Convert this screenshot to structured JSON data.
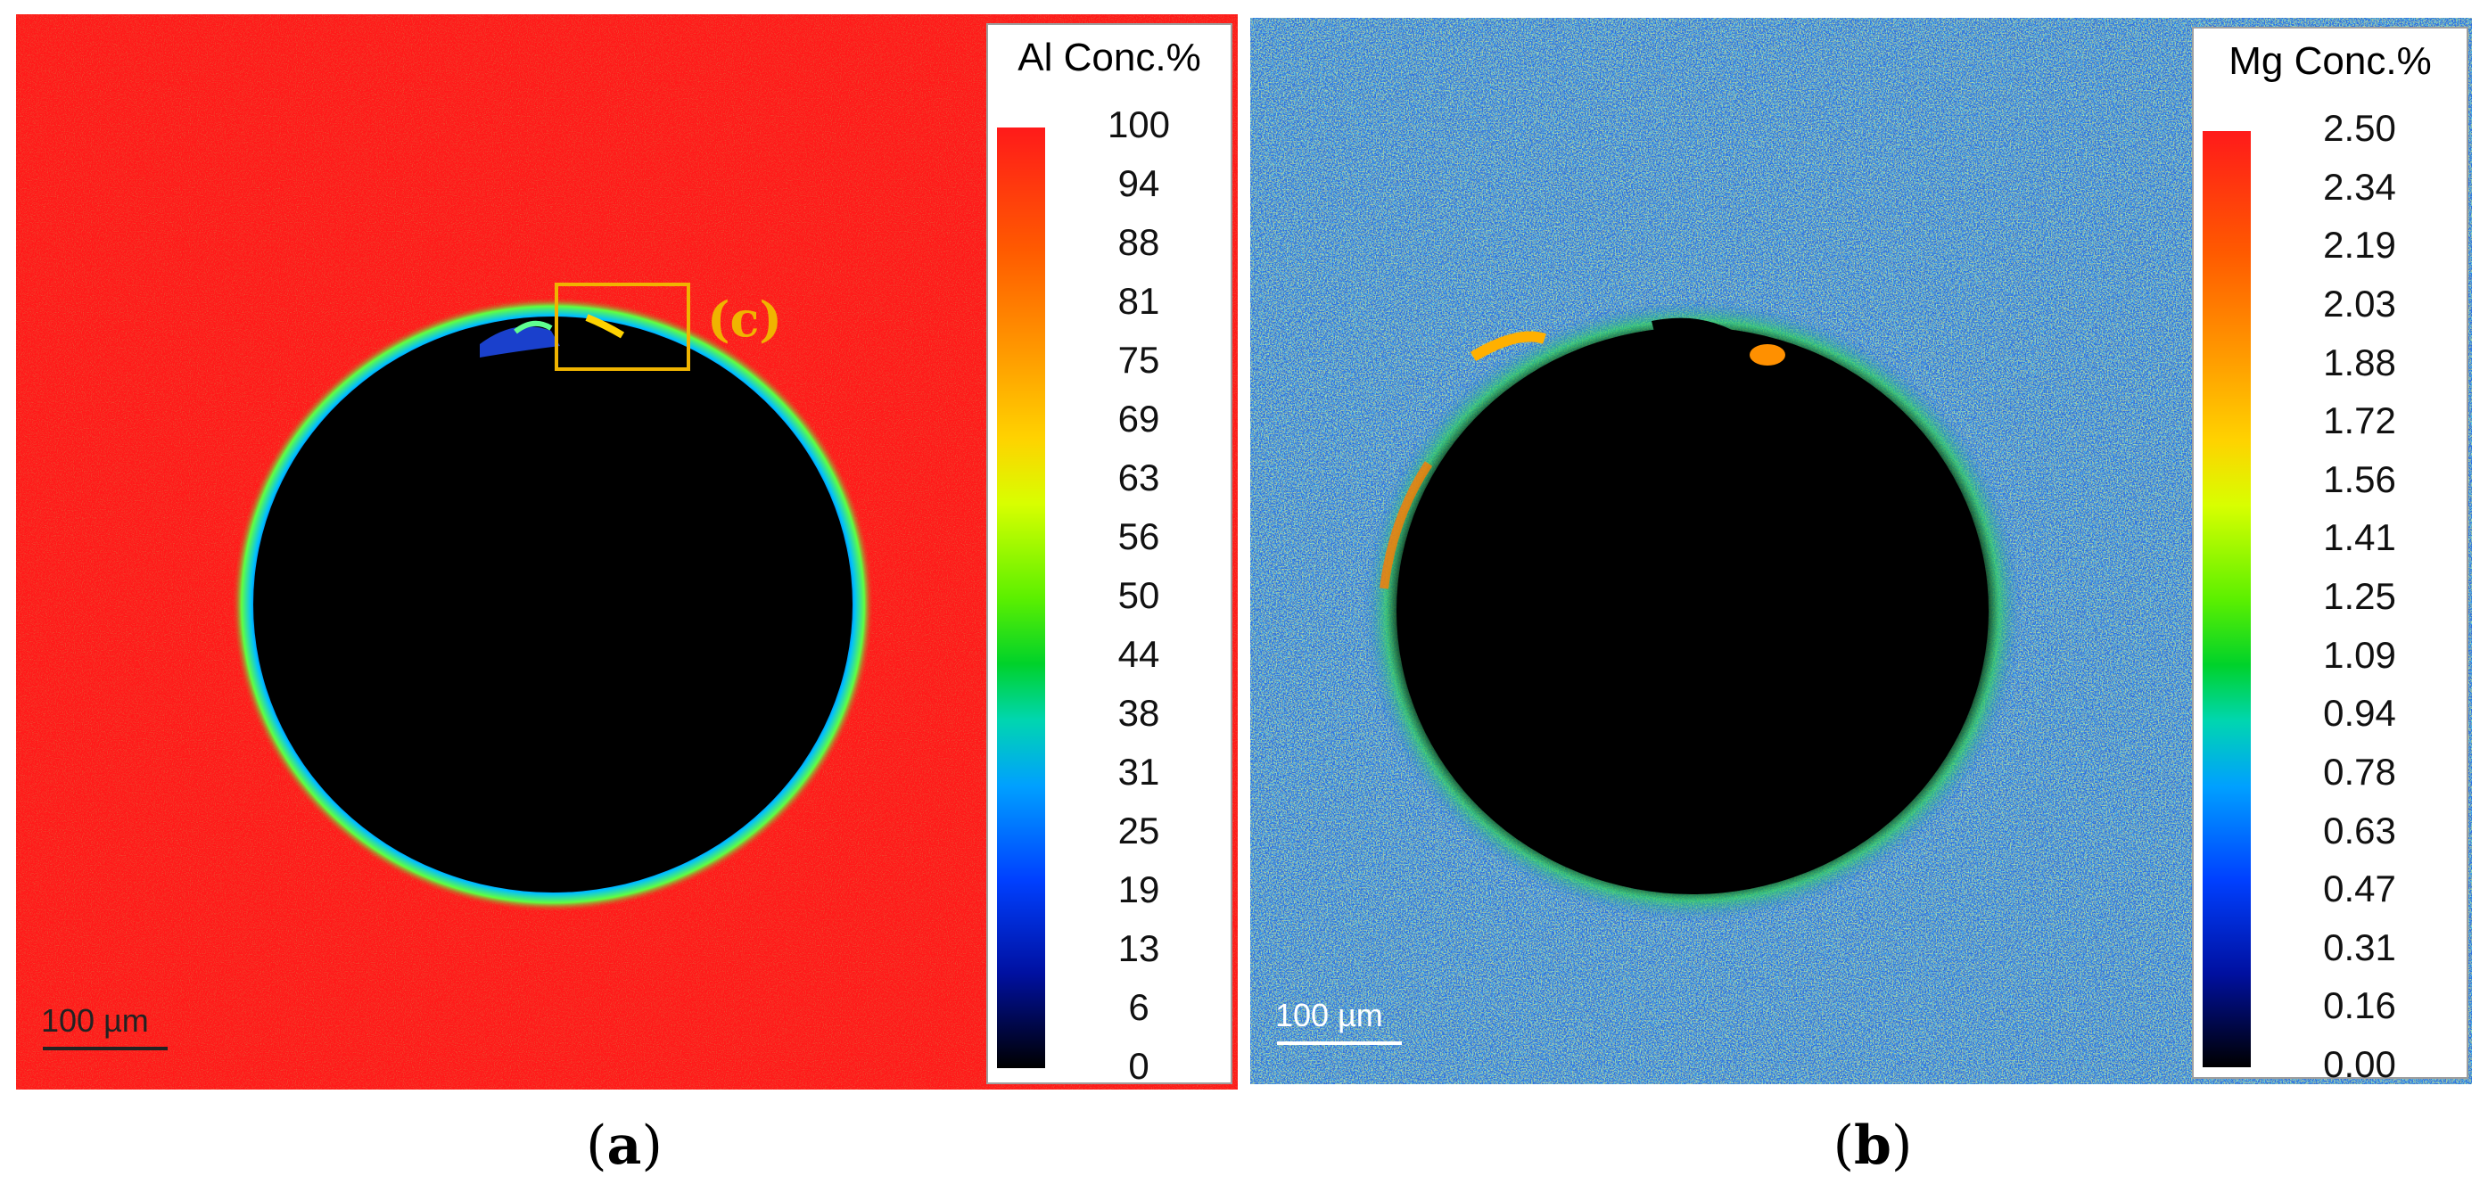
{
  "panels": [
    {
      "id": "a",
      "legend": {
        "title": "Al Conc.%",
        "ticks": [
          "100",
          "94",
          "88",
          "81",
          "75",
          "69",
          "63",
          "56",
          "50",
          "44",
          "38",
          "31",
          "25",
          "19",
          "13",
          "6",
          "0"
        ]
      },
      "scale_bar": "100 µm",
      "inset_label": "(c)",
      "caption": "a"
    },
    {
      "id": "b",
      "legend": {
        "title": "Mg Conc.%",
        "ticks": [
          "2.50",
          "2.34",
          "2.19",
          "2.03",
          "1.88",
          "1.72",
          "1.56",
          "1.41",
          "1.25",
          "1.09",
          "0.94",
          "0.78",
          "0.63",
          "0.47",
          "0.31",
          "0.16",
          "0.00"
        ]
      },
      "scale_bar": "100 µm",
      "caption": "b"
    }
  ],
  "colors": {
    "al_matrix": "#ff1a1a",
    "mg_matrix": "#2f6fe0",
    "void": "#000000",
    "annotation": "#f0b400"
  }
}
